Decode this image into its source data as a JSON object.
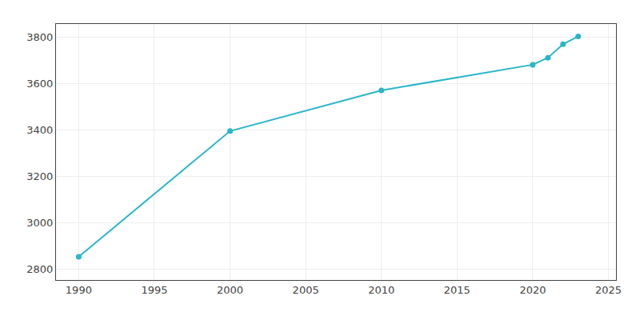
{
  "chart_data": {
    "type": "line",
    "x": [
      1990,
      2000,
      2010,
      2020,
      2021,
      2022,
      2023
    ],
    "values": [
      2855,
      3395,
      3570,
      3680,
      3710,
      3768,
      3802
    ],
    "color": "#29b6c8",
    "marker": "circle",
    "xlim": [
      1988.5,
      2025.5
    ],
    "xticks": [
      1990,
      1995,
      2000,
      2005,
      2010,
      2015,
      2020,
      2025
    ],
    "ylim": [
      2755,
      3855
    ],
    "yticks": [
      2800,
      3000,
      3200,
      3400,
      3600,
      3800
    ],
    "grid": true
  }
}
